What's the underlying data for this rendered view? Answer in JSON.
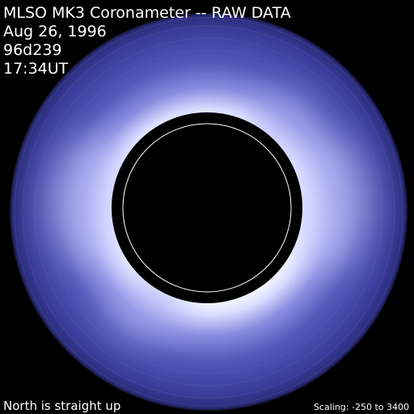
{
  "header": {
    "lines": [
      "MLSO MK3 Coronameter -- RAW DATA",
      "Aug 26, 1996",
      "96d239",
      "17:34UT"
    ]
  },
  "footer": {
    "left": "North is straight up",
    "right": "Scaling: -250 to 3400"
  }
}
